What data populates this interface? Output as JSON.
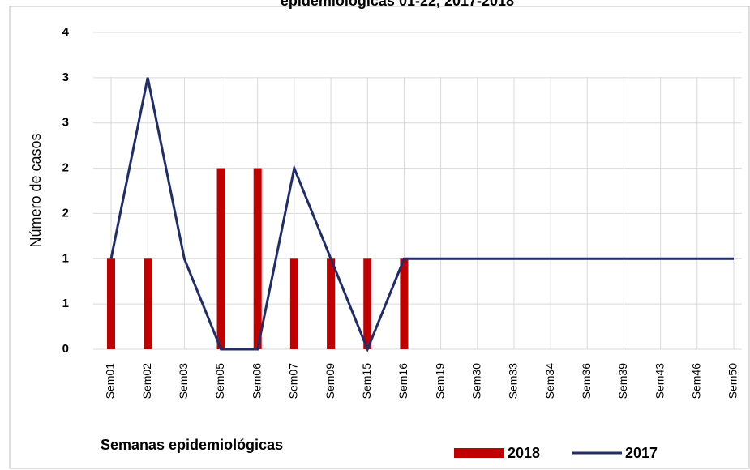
{
  "chart_data": {
    "type": "bar_line",
    "title": "epidemiológicas 01-22, 2017-2018",
    "x_label": "Semanas epidemiológicas",
    "y_label": "Número de casos",
    "categories": [
      "Sem01",
      "Sem02",
      "Sem03",
      "Sem05",
      "Sem06",
      "Sem07",
      "Sem09",
      "Sem15",
      "Sem16",
      "Sem19",
      "Sem30",
      "Sem33",
      "Sem34",
      "Sem36",
      "Sem39",
      "Sem43",
      "Sem46",
      "Sem50"
    ],
    "series": [
      {
        "name": "2018",
        "type": "bar",
        "color": "#c00000",
        "values": [
          1,
          1,
          0,
          2,
          2,
          1,
          1,
          1,
          1,
          0,
          0,
          0,
          0,
          0,
          0,
          0,
          0,
          0
        ]
      },
      {
        "name": "2017",
        "type": "line",
        "color": "#1f2d6b",
        "values": [
          1,
          3,
          1,
          0,
          0,
          2,
          1,
          0,
          1,
          1,
          1,
          1,
          1,
          1,
          1,
          1,
          1,
          1
        ]
      }
    ],
    "ylim": [
      0,
      3.5
    ],
    "yticks": [
      0,
      {
        "value": 0.5,
        "label": "1"
      },
      1,
      {
        "value": 1.5,
        "label": "2"
      },
      2,
      {
        "value": 2.5,
        "label": "3"
      },
      3,
      {
        "value": 3.5,
        "label": "4"
      }
    ],
    "grid": true
  }
}
